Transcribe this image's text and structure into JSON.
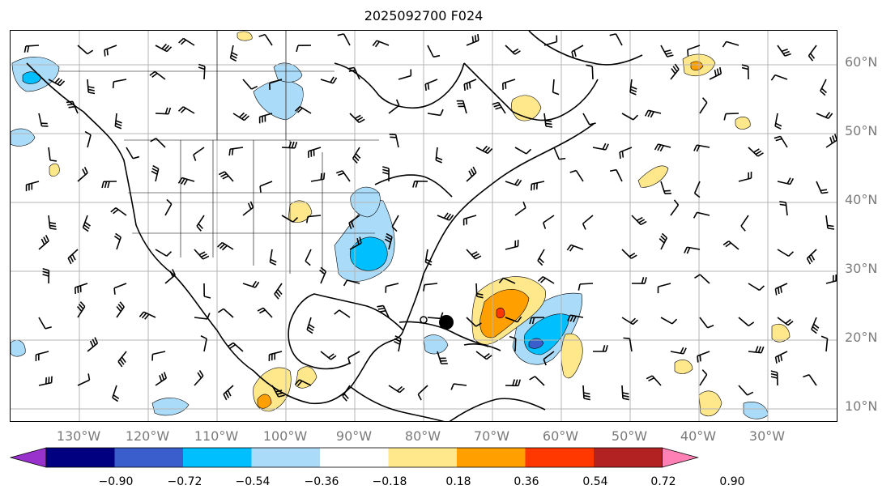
{
  "title": "2025092700 F024",
  "lat_labels": [
    "60°N",
    "50°N",
    "40°N",
    "30°N",
    "20°N",
    "10°N"
  ],
  "lon_labels": [
    "130°W",
    "120°W",
    "110°W",
    "100°W",
    "90°W",
    "80°W",
    "70°W",
    "60°W",
    "50°W",
    "40°W",
    "30°W"
  ],
  "colorbar": {
    "ticks": [
      "−0.90",
      "−0.72",
      "−0.54",
      "−0.36",
      "−0.18",
      "0.18",
      "0.36",
      "0.54",
      "0.72",
      "0.90"
    ],
    "colors": [
      "#9932cc",
      "#000080",
      "#3a5fcd",
      "#00bfff",
      "#aadcfa",
      "#ffffff",
      "#ffe88c",
      "#ff9f00",
      "#ff3800",
      "#b22222",
      "#ff80b4"
    ]
  },
  "colors": {
    "lightblue": "#aadcfa",
    "blue": "#00bfff",
    "midblue": "#3a5fcd",
    "yellow": "#ffe88c",
    "orange": "#ff9f00",
    "red": "#ff3800",
    "grid": "#b4b4b4",
    "label_gray": "#7a7a7a"
  }
}
